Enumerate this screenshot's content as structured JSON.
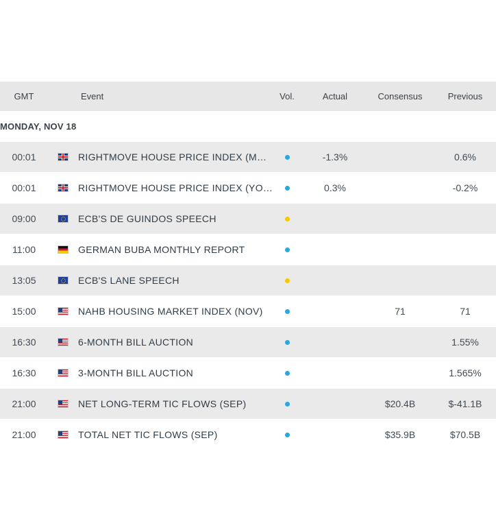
{
  "header": {
    "gmt": "GMT",
    "event": "Event",
    "vol": "Vol.",
    "actual": "Actual",
    "consensus": "Consensus",
    "previous": "Previous"
  },
  "date_label": "MONDAY, NOV 18",
  "colors": {
    "low_volatility": "#2aa6e0",
    "medium_volatility": "#f5c800",
    "row_shade": "#eaeaea",
    "header_bg": "#e7e7e7"
  },
  "events": [
    {
      "time": "00:01",
      "country": "gb",
      "flag_icon": "uk-flag-icon",
      "event": "RIGHTMOVE HOUSE PRICE INDEX (MOM) (...",
      "volatility": "low",
      "actual": "-1.3%",
      "consensus": "",
      "previous": "0.6%"
    },
    {
      "time": "00:01",
      "country": "gb",
      "flag_icon": "uk-flag-icon",
      "event": "RIGHTMOVE HOUSE PRICE INDEX (YOY) (...",
      "volatility": "low",
      "actual": "0.3%",
      "consensus": "",
      "previous": "-0.2%"
    },
    {
      "time": "09:00",
      "country": "eu",
      "flag_icon": "eu-flag-icon",
      "event": "ECB'S DE GUINDOS SPEECH",
      "volatility": "medium",
      "actual": "",
      "consensus": "",
      "previous": ""
    },
    {
      "time": "11:00",
      "country": "de",
      "flag_icon": "germany-flag-icon",
      "event": "GERMAN BUBA MONTHLY REPORT",
      "volatility": "low",
      "actual": "",
      "consensus": "",
      "previous": ""
    },
    {
      "time": "13:05",
      "country": "eu",
      "flag_icon": "eu-flag-icon",
      "event": "ECB'S LANE SPEECH",
      "volatility": "medium",
      "actual": "",
      "consensus": "",
      "previous": ""
    },
    {
      "time": "15:00",
      "country": "us",
      "flag_icon": "us-flag-icon",
      "event": "NAHB HOUSING MARKET INDEX (NOV)",
      "volatility": "low",
      "actual": "",
      "consensus": "71",
      "previous": "71"
    },
    {
      "time": "16:30",
      "country": "us",
      "flag_icon": "us-flag-icon",
      "event": "6-MONTH BILL AUCTION",
      "volatility": "low",
      "actual": "",
      "consensus": "",
      "previous": "1.55%"
    },
    {
      "time": "16:30",
      "country": "us",
      "flag_icon": "us-flag-icon",
      "event": "3-MONTH BILL AUCTION",
      "volatility": "low",
      "actual": "",
      "consensus": "",
      "previous": "1.565%"
    },
    {
      "time": "21:00",
      "country": "us",
      "flag_icon": "us-flag-icon",
      "event": "NET LONG-TERM TIC FLOWS (SEP)",
      "volatility": "low",
      "actual": "",
      "consensus": "$20.4B",
      "previous": "$-41.1B"
    },
    {
      "time": "21:00",
      "country": "us",
      "flag_icon": "us-flag-icon",
      "event": "TOTAL NET TIC FLOWS (SEP)",
      "volatility": "low",
      "actual": "",
      "consensus": "$35.9B",
      "previous": "$70.5B"
    }
  ]
}
